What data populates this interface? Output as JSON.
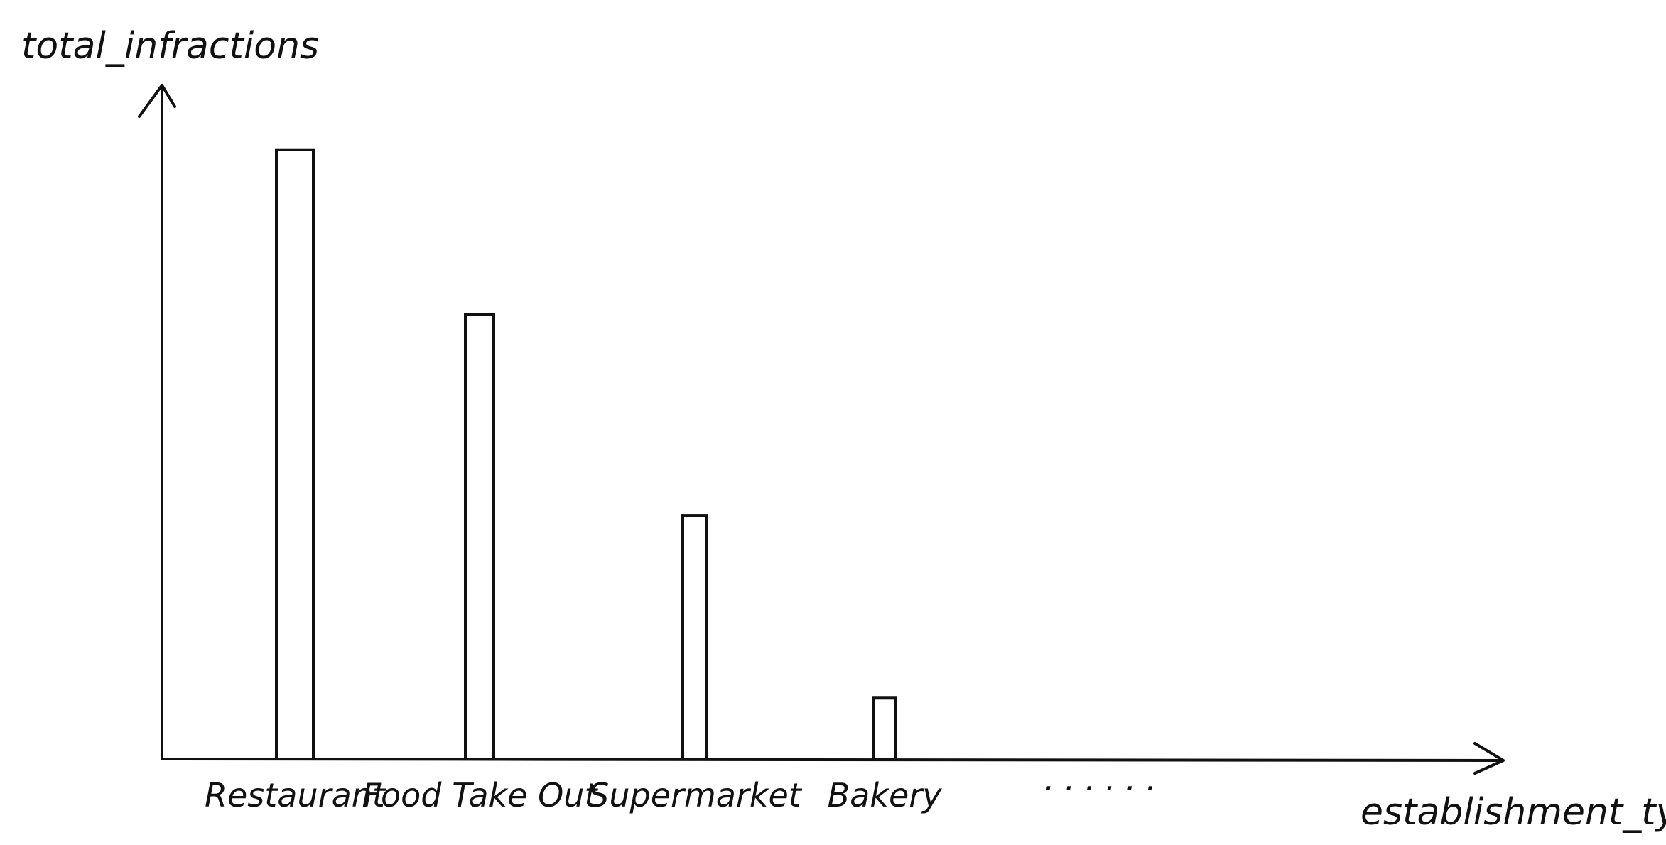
{
  "chart_data": {
    "type": "bar",
    "xlabel": "establishment_type",
    "ylabel": "total_infractions",
    "categories": [
      "Restaurant",
      "Food Take Out",
      "Supermarket",
      "Bakery"
    ],
    "values": [
      100,
      73,
      40,
      10
    ],
    "ylim": [
      0,
      110
    ],
    "overflow_marker": "......",
    "grid": false,
    "legend": "none",
    "colors": {
      "stroke": "#111111",
      "bar_fill": "#ffffff"
    }
  }
}
